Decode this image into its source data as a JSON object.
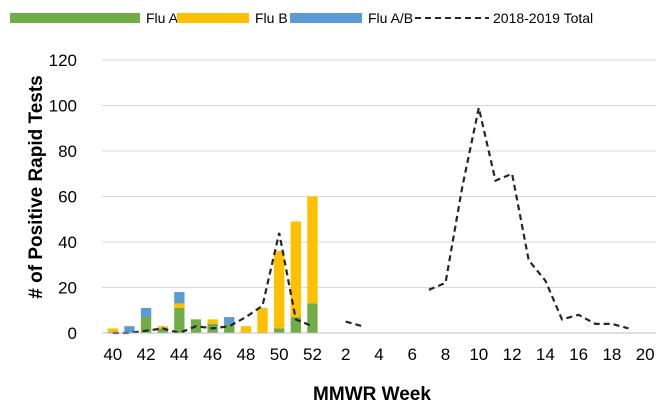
{
  "chart_data": {
    "type": "bar",
    "xlabel": "MMWR Week",
    "ylabel": "# of Positive Rapid Tests",
    "ylim": [
      0,
      120
    ],
    "yticks": [
      0,
      20,
      40,
      60,
      80,
      100,
      120
    ],
    "grid": "horizontal",
    "legend_position": "top",
    "x_tick_labels": [
      "40",
      "42",
      "44",
      "46",
      "48",
      "50",
      "52",
      "2",
      "4",
      "6",
      "8",
      "10",
      "12",
      "14",
      "16",
      "18",
      "20"
    ],
    "categories": [
      "40",
      "41",
      "42",
      "43",
      "44",
      "45",
      "46",
      "47",
      "48",
      "49",
      "50",
      "51",
      "52",
      "1",
      "2",
      "3",
      "4",
      "5",
      "6",
      "7",
      "8",
      "9",
      "10",
      "11",
      "12",
      "13",
      "14",
      "15",
      "16",
      "17",
      "18",
      "19",
      "20"
    ],
    "series": [
      {
        "name": "Flu A",
        "kind": "bar",
        "color": "#70ad47",
        "values": [
          0.5,
          0,
          7,
          2,
          11,
          6,
          4,
          4,
          0,
          0,
          2,
          7,
          13,
          null,
          null,
          null,
          null,
          null,
          null,
          null,
          null,
          null,
          null,
          null,
          null,
          null,
          null,
          null,
          null,
          null,
          null,
          null,
          null
        ]
      },
      {
        "name": "Flu B",
        "kind": "bar",
        "color": "#ffc000",
        "values": [
          1.5,
          0,
          0,
          1,
          2,
          0,
          2,
          0,
          3,
          11,
          34,
          42,
          47,
          null,
          null,
          null,
          null,
          null,
          null,
          null,
          null,
          null,
          null,
          null,
          null,
          null,
          null,
          null,
          null,
          null,
          null,
          null,
          null
        ]
      },
      {
        "name": "Flu A/B",
        "kind": "bar",
        "color": "#5b9bd5",
        "values": [
          0,
          3,
          4,
          0,
          5,
          0,
          0,
          3,
          0,
          0,
          0,
          0,
          0,
          null,
          null,
          null,
          null,
          null,
          null,
          null,
          null,
          null,
          null,
          null,
          null,
          null,
          null,
          null,
          null,
          null,
          null,
          null,
          null
        ]
      },
      {
        "name": "2018-2019 Total",
        "kind": "line",
        "style": "dashed",
        "color": "#262626",
        "values": [
          0,
          0,
          1,
          2,
          0,
          3,
          2,
          3,
          7,
          12,
          44,
          6,
          3,
          null,
          5,
          3,
          null,
          null,
          null,
          19,
          22,
          64,
          99,
          67,
          70,
          32,
          23,
          6,
          8,
          4,
          4,
          2,
          null
        ]
      }
    ]
  }
}
